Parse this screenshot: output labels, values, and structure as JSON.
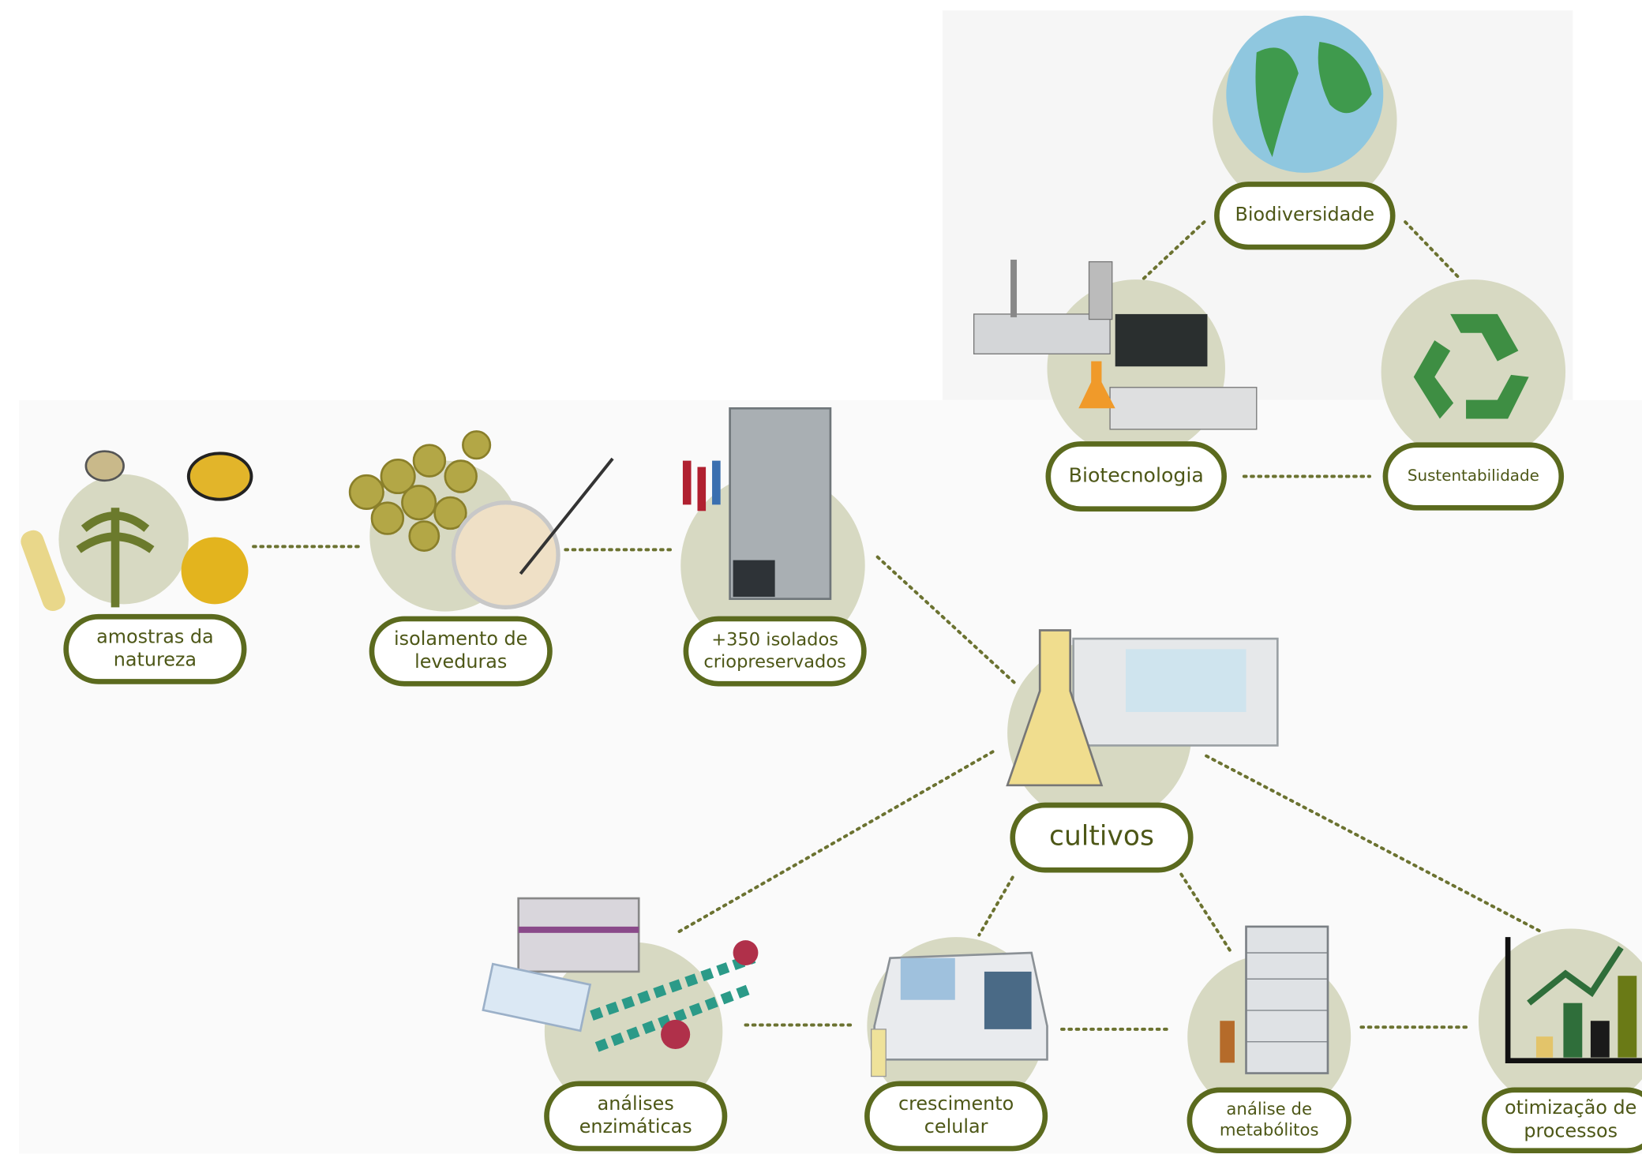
{
  "nodes": [
    {
      "lines": [
        "amostras da",
        "natureza"
      ]
    },
    {
      "lines": [
        "isolamento de",
        "leveduras"
      ]
    },
    {
      "lines": [
        "+350 isolados",
        "criopreservados"
      ]
    },
    {
      "lines": [
        "cultivos"
      ]
    },
    {
      "lines": [
        "análises",
        "enzimáticas"
      ]
    },
    {
      "lines": [
        "crescimento",
        "celular"
      ]
    },
    {
      "lines": [
        "análise de",
        "metabólitos"
      ]
    },
    {
      "lines": [
        "otimização de",
        "processos"
      ]
    },
    {
      "lines": [
        "Biodiversidade"
      ]
    },
    {
      "lines": [
        "Biotecnologia"
      ]
    },
    {
      "lines": [
        "Sustentabilidade"
      ]
    }
  ]
}
